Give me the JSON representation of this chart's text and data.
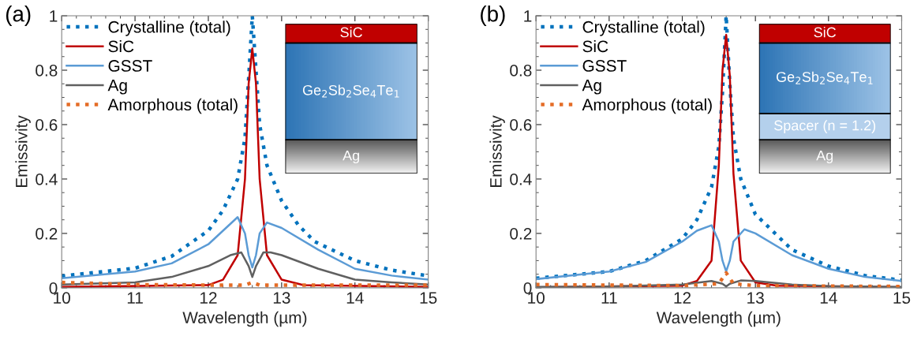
{
  "chart_data": [
    {
      "type": "line",
      "title": "(a)",
      "xlabel": "Wavelength (µm)",
      "ylabel": "Emissivity",
      "xlim": [
        10,
        15
      ],
      "ylim": [
        0,
        1
      ],
      "xticks": [
        10,
        11,
        12,
        13,
        14,
        15
      ],
      "yticks": [
        0,
        0.2,
        0.4,
        0.6,
        0.8,
        1
      ],
      "grid": false,
      "legend": "top left",
      "marker": "none",
      "annotations": [
        "SiC",
        "Ge$_{2}$Sb$_{2}$Se$_{4}$Te$_{1}$",
        "Ag"
      ],
      "series": [
        {
          "name": "Crystalline (total)",
          "color": "#0072bd",
          "line_style": "dotted",
          "x": [
            10,
            11,
            11.5,
            12,
            12.2,
            12.4,
            12.5,
            12.55,
            12.6,
            12.65,
            12.7,
            12.8,
            13,
            13.23,
            13.45,
            14,
            14.5,
            15
          ],
          "values": [
            0.043,
            0.072,
            0.116,
            0.21,
            0.285,
            0.4,
            0.55,
            0.77,
            1.0,
            0.8,
            0.6,
            0.45,
            0.32,
            0.23,
            0.17,
            0.1,
            0.065,
            0.044
          ]
        },
        {
          "name": "SiC",
          "color": "#c00000",
          "line_style": "solid",
          "x": [
            10,
            12,
            12.2,
            12.4,
            12.5,
            12.55,
            12.6,
            12.65,
            12.7,
            12.8,
            13,
            13.3,
            15
          ],
          "values": [
            0.003,
            0.01,
            0.03,
            0.12,
            0.4,
            0.75,
            0.88,
            0.75,
            0.4,
            0.12,
            0.03,
            0.01,
            0.003
          ]
        },
        {
          "name": "GSST",
          "color": "#5b9bd5",
          "line_style": "solid",
          "x": [
            10,
            11,
            11.5,
            12,
            12.2,
            12.4,
            12.5,
            12.55,
            12.6,
            12.65,
            12.7,
            12.8,
            13,
            13.5,
            14,
            14.5,
            15
          ],
          "values": [
            0.035,
            0.06,
            0.09,
            0.16,
            0.21,
            0.26,
            0.2,
            0.12,
            0.075,
            0.12,
            0.2,
            0.24,
            0.22,
            0.14,
            0.07,
            0.045,
            0.03
          ]
        },
        {
          "name": "Ag",
          "color": "#606060",
          "line_style": "solid",
          "x": [
            10,
            11,
            11.5,
            12,
            12.3,
            12.45,
            12.55,
            12.6,
            12.65,
            12.75,
            12.85,
            13,
            13.5,
            14,
            14.5,
            15
          ],
          "values": [
            0.012,
            0.02,
            0.04,
            0.08,
            0.12,
            0.13,
            0.08,
            0.04,
            0.08,
            0.13,
            0.13,
            0.12,
            0.07,
            0.03,
            0.02,
            0.012
          ]
        },
        {
          "name": "Amorphous (total)",
          "color": "#e46c26",
          "line_style": "dotted",
          "x": [
            10,
            11,
            12,
            12.5,
            12.6,
            12.7,
            13,
            14,
            15
          ],
          "values": [
            0.02,
            0.012,
            0.01,
            0.01,
            0.02,
            0.01,
            0.01,
            0.01,
            0.01
          ]
        }
      ]
    },
    {
      "type": "line",
      "title": "(b)",
      "xlabel": "Wavelength (µm)",
      "ylabel": "Emissivity",
      "xlim": [
        10,
        15
      ],
      "ylim": [
        0,
        1
      ],
      "xticks": [
        10,
        11,
        12,
        13,
        14,
        15
      ],
      "yticks": [
        0,
        0.2,
        0.4,
        0.6,
        0.8,
        1
      ],
      "grid": false,
      "legend": "top left",
      "marker": "none",
      "annotations": [
        "SiC",
        "Ge$_{2}$Sb$_{2}$Se$_{4}$Te$_{1}$",
        "Spacer (n = 1.2)",
        "Ag"
      ],
      "series": [
        {
          "name": "Crystalline (total)",
          "color": "#0072bd",
          "line_style": "dotted",
          "x": [
            10,
            11,
            11.5,
            12,
            12.2,
            12.4,
            12.5,
            12.55,
            12.6,
            12.65,
            12.7,
            12.8,
            13,
            13.5,
            14,
            14.5,
            15
          ],
          "values": [
            0.035,
            0.06,
            0.1,
            0.18,
            0.25,
            0.37,
            0.52,
            0.72,
            1.0,
            0.75,
            0.55,
            0.4,
            0.27,
            0.14,
            0.08,
            0.045,
            0.028
          ]
        },
        {
          "name": "SiC",
          "color": "#c00000",
          "line_style": "solid",
          "x": [
            10,
            12,
            12.2,
            12.4,
            12.5,
            12.55,
            12.6,
            12.65,
            12.7,
            12.8,
            13,
            13.3,
            15
          ],
          "values": [
            0.002,
            0.008,
            0.025,
            0.1,
            0.45,
            0.8,
            0.93,
            0.78,
            0.42,
            0.1,
            0.02,
            0.008,
            0.002
          ]
        },
        {
          "name": "GSST",
          "color": "#5b9bd5",
          "line_style": "solid",
          "x": [
            10,
            11,
            11.5,
            12,
            12.2,
            12.4,
            12.5,
            12.55,
            12.6,
            12.65,
            12.7,
            12.85,
            13,
            13.5,
            14,
            14.5,
            15
          ],
          "values": [
            0.032,
            0.06,
            0.095,
            0.17,
            0.21,
            0.23,
            0.17,
            0.1,
            0.06,
            0.1,
            0.17,
            0.215,
            0.2,
            0.12,
            0.07,
            0.04,
            0.025
          ]
        },
        {
          "name": "Ag",
          "color": "#606060",
          "line_style": "solid",
          "x": [
            10,
            11,
            12,
            12.4,
            12.55,
            12.6,
            12.65,
            12.8,
            13,
            13.5,
            14,
            15
          ],
          "values": [
            0.003,
            0.005,
            0.012,
            0.025,
            0.015,
            0.005,
            0.015,
            0.027,
            0.025,
            0.012,
            0.006,
            0.003
          ]
        },
        {
          "name": "Amorphous (total)",
          "color": "#e46c26",
          "line_style": "dotted",
          "x": [
            10,
            12,
            12.5,
            12.6,
            12.7,
            13,
            15
          ],
          "values": [
            0.012,
            0.008,
            0.015,
            0.055,
            0.015,
            0.008,
            0.005
          ]
        }
      ]
    }
  ]
}
